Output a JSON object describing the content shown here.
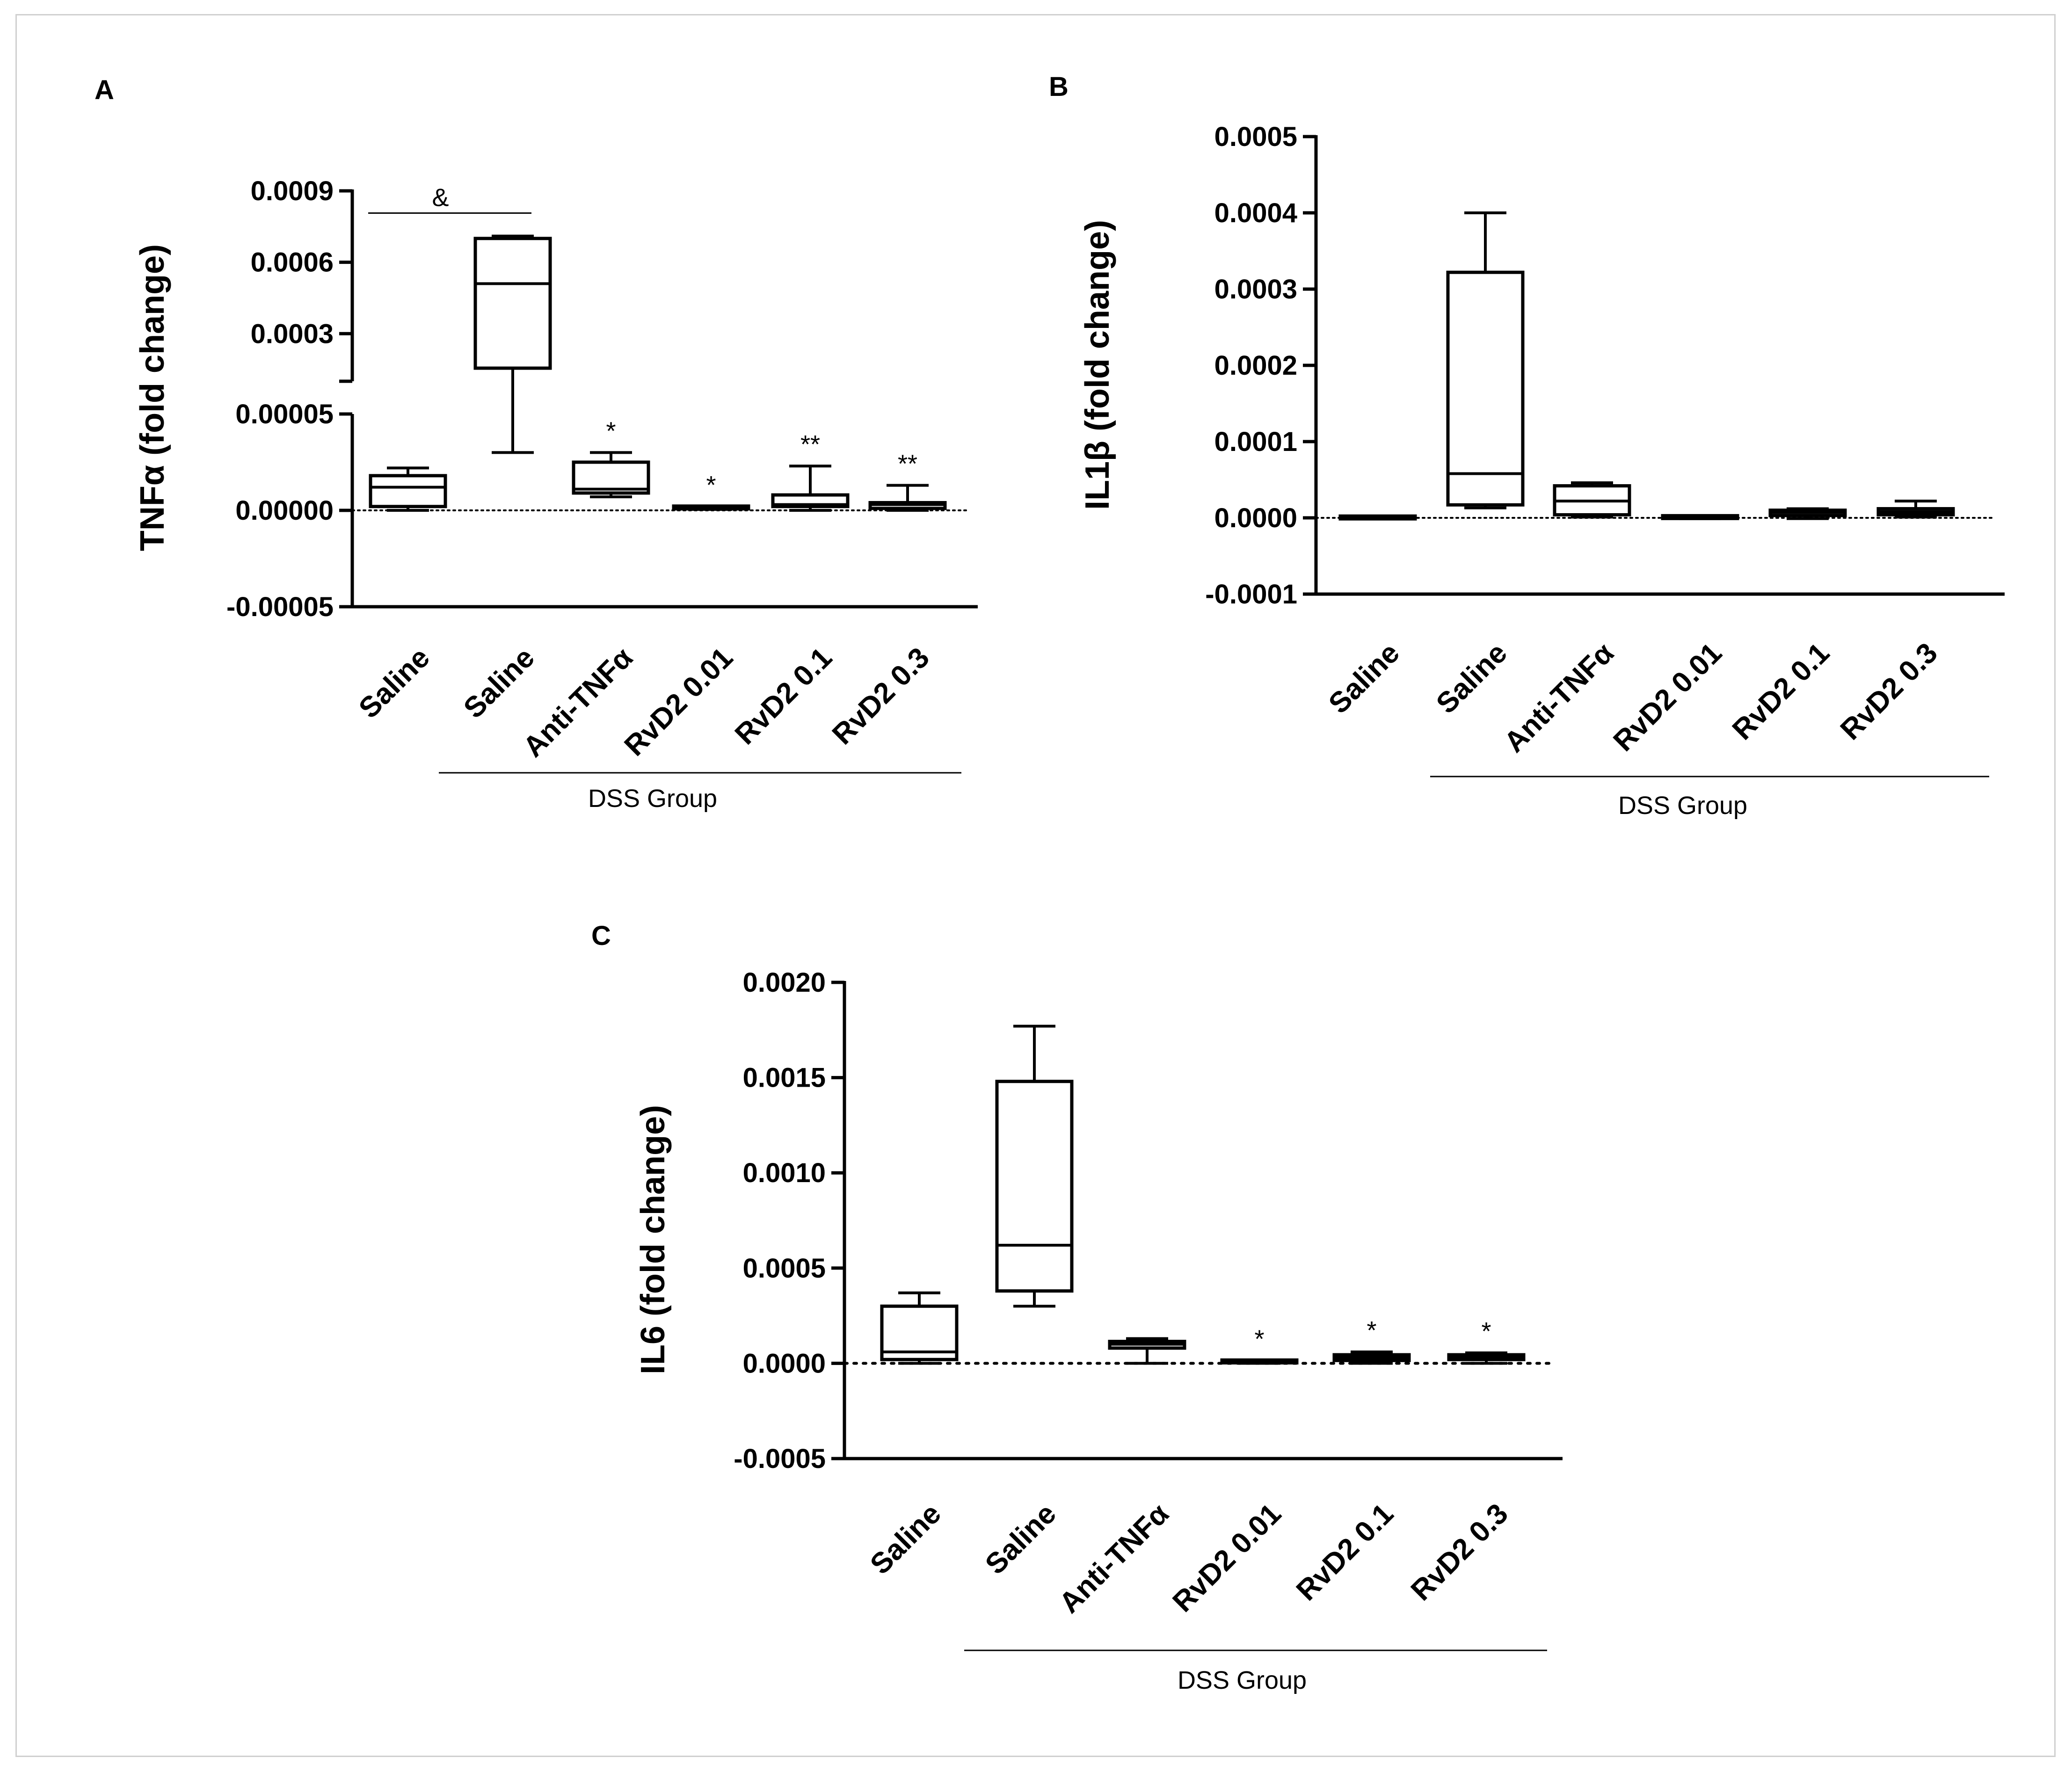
{
  "chart_data": [
    {
      "panel": "A",
      "type": "box",
      "ylabel": "TNFα (fold change)",
      "categories": [
        "Saline",
        "Saline",
        "Anti-TNFα",
        "RvD2 0.01",
        "RvD2 0.1",
        "RvD2 0.3"
      ],
      "group_label": "DSS Group",
      "group_covers": [
        1,
        5
      ],
      "y_axis_broken": true,
      "y_lower_range": [
        -5e-05,
        5e-05
      ],
      "y_lower_ticks": [
        "0.00005",
        "0.00000",
        "-0.00005"
      ],
      "y_lower_tick_values": [
        5e-05,
        0.0,
        -5e-05
      ],
      "y_upper_range": [
        0.0001,
        0.0009
      ],
      "y_upper_ticks": [
        "0.0009",
        "0.0006",
        "0.0003"
      ],
      "y_upper_tick_values": [
        0.0009,
        0.0006,
        0.0003
      ],
      "boxes": [
        {
          "min": 0.0,
          "q1": 2e-06,
          "median": 1.2e-05,
          "q3": 1.8e-05,
          "max": 2.2e-05
        },
        {
          "min": 3e-05,
          "q1": 0.000155,
          "median": 0.00051,
          "q3": 0.0007,
          "max": 0.00071
        },
        {
          "min": 7e-06,
          "q1": 9e-06,
          "median": 1.1e-05,
          "q3": 2.5e-05,
          "max": 3e-05
        },
        {
          "min": 5e-07,
          "q1": 1e-06,
          "median": 1.2e-06,
          "q3": 1.5e-06,
          "max": 2e-06
        },
        {
          "min": 0.0,
          "q1": 2e-06,
          "median": 3e-06,
          "q3": 8e-06,
          "max": 2.3e-05
        },
        {
          "min": 0.0,
          "q1": 1e-06,
          "median": 3e-06,
          "q3": 4e-06,
          "max": 1.3e-05
        }
      ],
      "annotations": [
        "",
        "",
        "*",
        "*",
        "**",
        "**"
      ],
      "bracket": {
        "label": "&",
        "from": 0,
        "to": 1
      }
    },
    {
      "panel": "B",
      "type": "box",
      "ylabel": "IL1β (fold change)",
      "categories": [
        "Saline",
        "Saline",
        "Anti-TNFα",
        "RvD2 0.01",
        "RvD2 0.1",
        "RvD2 0.3"
      ],
      "group_label": "DSS Group",
      "group_covers": [
        1,
        5
      ],
      "ylim": [
        -0.0001,
        0.0005
      ],
      "yticks": [
        "0.0005",
        "0.0004",
        "0.0003",
        "0.0002",
        "0.0001",
        "0.0000",
        "-0.0001"
      ],
      "ytick_values": [
        0.0005,
        0.0004,
        0.0003,
        0.0002,
        0.0001,
        0.0,
        -0.0001
      ],
      "boxes": [
        {
          "min": -1e-06,
          "q1": -5e-07,
          "median": 0.0,
          "q3": 5e-07,
          "max": 1e-06
        },
        {
          "min": 1.3e-05,
          "q1": 1.7e-05,
          "median": 5.8e-05,
          "q3": 0.000322,
          "max": 0.0004
        },
        {
          "min": 1e-06,
          "q1": 4e-06,
          "median": 2.2e-05,
          "q3": 4.2e-05,
          "max": 4.6e-05
        },
        {
          "min": -1e-06,
          "q1": -5e-07,
          "median": 0.0,
          "q3": 1e-06,
          "max": 2e-06
        },
        {
          "min": -1e-06,
          "q1": 3e-06,
          "median": 7e-06,
          "q3": 1e-05,
          "max": 1.2e-05
        },
        {
          "min": 1e-06,
          "q1": 4e-06,
          "median": 8e-06,
          "q3": 1.2e-05,
          "max": 2.2e-05
        }
      ],
      "annotations": [
        "",
        "",
        "",
        "",
        "",
        ""
      ]
    },
    {
      "panel": "C",
      "type": "box",
      "ylabel": "IL6 (fold change)",
      "categories": [
        "Saline",
        "Saline",
        "Anti-TNFα",
        "RvD2 0.01",
        "RvD2 0.1",
        "RvD2 0.3"
      ],
      "group_label": "DSS Group",
      "group_covers": [
        1,
        5
      ],
      "ylim": [
        -0.0005,
        0.002
      ],
      "yticks": [
        "0.0020",
        "0.0015",
        "0.0010",
        "0.0005",
        "0.0000",
        "-0.0005"
      ],
      "ytick_values": [
        0.002,
        0.0015,
        0.001,
        0.0005,
        0.0,
        -0.0005
      ],
      "boxes": [
        {
          "min": 0.0,
          "q1": 2e-05,
          "median": 6e-05,
          "q3": 0.0003,
          "max": 0.00037
        },
        {
          "min": 0.0003,
          "q1": 0.00038,
          "median": 0.00062,
          "q3": 0.00148,
          "max": 0.00177
        },
        {
          "min": 0.0,
          "q1": 8e-05,
          "median": 0.0001,
          "q3": 0.000115,
          "max": 0.00013
        },
        {
          "min": 0.0,
          "q1": 3e-06,
          "median": 6e-06,
          "q3": 1e-05,
          "max": 1.5e-05
        },
        {
          "min": 0.0,
          "q1": 1.5e-05,
          "median": 3e-05,
          "q3": 4.5e-05,
          "max": 6e-05
        },
        {
          "min": 0.0,
          "q1": 2e-05,
          "median": 3.5e-05,
          "q3": 4.5e-05,
          "max": 5.5e-05
        }
      ],
      "annotations": [
        "",
        "",
        "",
        "*",
        "*",
        "*"
      ]
    }
  ]
}
